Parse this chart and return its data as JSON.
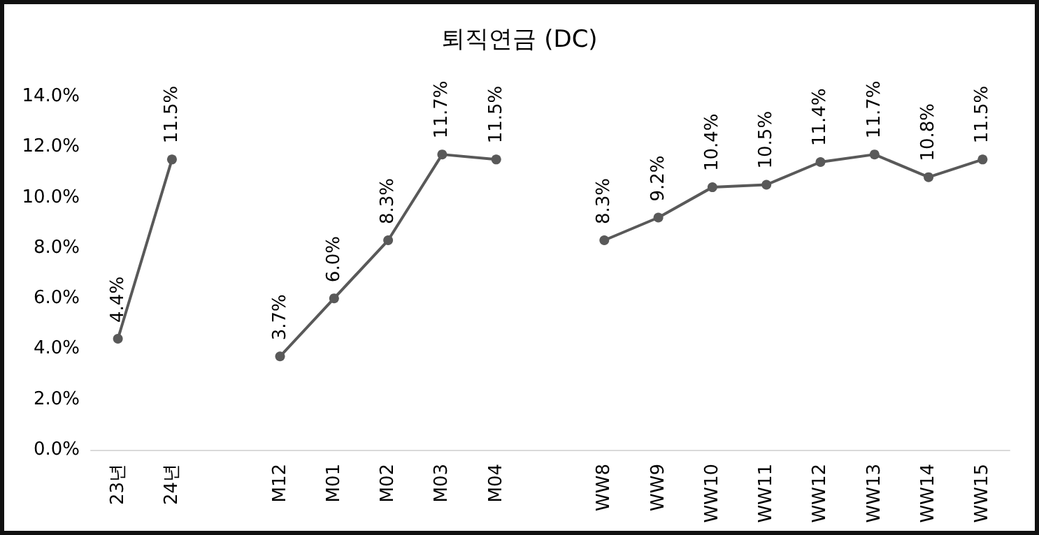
{
  "chart_data": {
    "type": "line",
    "title": "퇴직연금 (DC)",
    "categories": [
      "23년",
      "24년",
      null,
      "M12",
      "M01",
      "M02",
      "M03",
      "M04",
      null,
      "WW8",
      "WW9",
      "WW10",
      "WW11",
      "WW12",
      "WW13",
      "WW14",
      "WW15"
    ],
    "values": [
      4.4,
      11.5,
      null,
      3.7,
      6.0,
      8.3,
      11.7,
      11.5,
      null,
      8.3,
      9.2,
      10.4,
      10.5,
      11.4,
      11.7,
      10.8,
      11.5
    ],
    "value_labels": [
      "4.4%",
      "11.5%",
      null,
      "3.7%",
      "6.0%",
      "8.3%",
      "11.7%",
      "11.5%",
      null,
      "8.3%",
      "9.2%",
      "10.4%",
      "10.5%",
      "11.4%",
      "11.7%",
      "10.8%",
      "11.5%"
    ],
    "color": "#595959",
    "marker": "circle",
    "line_style": "solid",
    "ylim": [
      0,
      14
    ],
    "yticks": [
      {
        "value": 0,
        "label": "0.0%"
      },
      {
        "value": 2,
        "label": "2.0%"
      },
      {
        "value": 4,
        "label": "4.0%"
      },
      {
        "value": 6,
        "label": "6.0%"
      },
      {
        "value": 8,
        "label": "8.0%"
      },
      {
        "value": 10,
        "label": "10.0%"
      },
      {
        "value": 12,
        "label": "12.0%"
      },
      {
        "value": 14,
        "label": "14.0%"
      }
    ]
  }
}
